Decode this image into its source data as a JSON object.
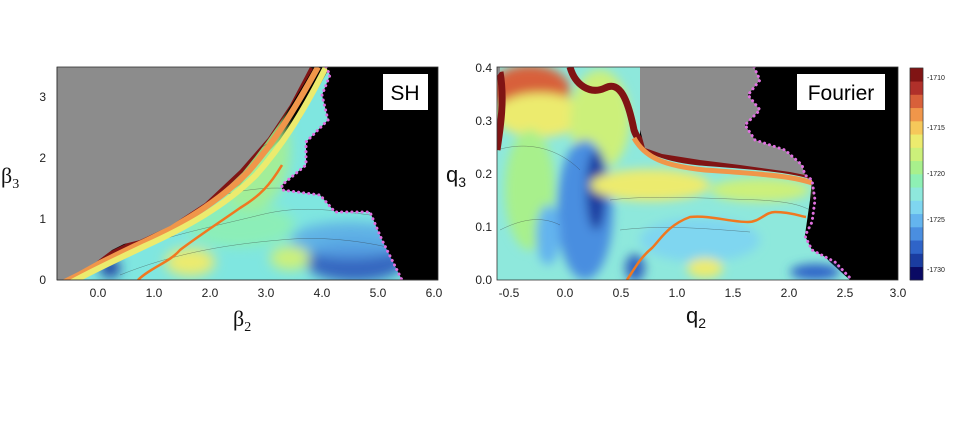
{
  "chart_data": [
    {
      "type": "heatmap",
      "panel_label": "SH",
      "xlabel_symbol": "β",
      "xlabel_sub": "2",
      "ylabel_symbol": "β",
      "ylabel_sub": "3",
      "xlim": [
        -1.0,
        6.0
      ],
      "ylim": [
        0,
        3.5
      ],
      "x_ticks": [
        "0.0",
        "1.0",
        "2.0",
        "3.0",
        "4.0",
        "5.0",
        "6.0"
      ],
      "x_tick_values": [
        0,
        1,
        2,
        3,
        4,
        5,
        6
      ],
      "y_ticks": [
        "0",
        "1",
        "2",
        "3"
      ],
      "y_tick_values": [
        0,
        1,
        2,
        3
      ],
      "region_colors": {
        "unbound": "#8c8c8c",
        "out_of_range": "#000000",
        "boundary_dots": "#e070e0",
        "fission_path": "#f07820"
      },
      "unbound_boundary": [
        [
          -0.65,
          0.0
        ],
        [
          0.0,
          0.3
        ],
        [
          0.5,
          0.65
        ],
        [
          1.0,
          0.75
        ],
        [
          1.5,
          1.05
        ],
        [
          2.0,
          1.45
        ],
        [
          2.5,
          2.0
        ],
        [
          3.0,
          2.7
        ],
        [
          3.5,
          3.5
        ]
      ],
      "data_boundary": [
        [
          3.75,
          3.5
        ],
        [
          3.8,
          3.3
        ],
        [
          3.6,
          2.9
        ],
        [
          3.65,
          2.6
        ],
        [
          3.35,
          2.35
        ],
        [
          3.5,
          1.9
        ],
        [
          3.25,
          1.7
        ],
        [
          3.2,
          1.45
        ],
        [
          3.9,
          1.4
        ],
        [
          4.3,
          1.1
        ],
        [
          5.0,
          1.1
        ],
        [
          5.2,
          0.6
        ],
        [
          5.35,
          0.0
        ]
      ],
      "fission_path": [
        [
          0.75,
          0.0
        ],
        [
          1.2,
          0.25
        ],
        [
          1.6,
          0.45
        ],
        [
          2.1,
          0.75
        ],
        [
          2.6,
          1.05
        ],
        [
          3.0,
          1.45
        ],
        [
          3.3,
          1.9
        ]
      ],
      "energy_minima": [
        [
          0.2,
          0.05
        ],
        [
          4.5,
          0.1
        ]
      ]
    },
    {
      "type": "heatmap",
      "panel_label": "Fourier",
      "xlabel_symbol": "q",
      "xlabel_sub": "2",
      "ylabel_symbol": "q",
      "ylabel_sub": "3",
      "xlim": [
        -0.6,
        3.0
      ],
      "ylim": [
        0.0,
        0.4
      ],
      "x_ticks": [
        "-0.5",
        "0.0",
        "0.5",
        "1.0",
        "1.5",
        "2.0",
        "2.5",
        "3.0"
      ],
      "x_tick_values": [
        -0.5,
        0.0,
        0.5,
        1.0,
        1.5,
        2.0,
        2.5,
        3.0
      ],
      "y_ticks": [
        "0.0",
        "0.1",
        "0.2",
        "0.3",
        "0.4"
      ],
      "y_tick_values": [
        0.0,
        0.1,
        0.2,
        0.3,
        0.4
      ],
      "region_colors": {
        "unbound": "#8c8c8c",
        "out_of_range": "#000000",
        "boundary_dots": "#e070e0",
        "fission_path": "#f07820"
      },
      "unbound_region": [
        [
          0.95,
          0.4
        ],
        [
          1.05,
          0.25
        ],
        [
          1.2,
          0.22
        ],
        [
          1.5,
          0.21
        ],
        [
          2.0,
          0.19
        ],
        [
          2.3,
          0.18
        ],
        [
          2.25,
          0.23
        ],
        [
          2.0,
          0.27
        ],
        [
          1.8,
          0.32
        ],
        [
          1.8,
          0.36
        ],
        [
          1.65,
          0.4
        ]
      ],
      "data_boundary": [
        [
          1.65,
          0.4
        ],
        [
          1.8,
          0.36
        ],
        [
          1.8,
          0.32
        ],
        [
          2.0,
          0.27
        ],
        [
          2.25,
          0.23
        ],
        [
          2.3,
          0.18
        ],
        [
          2.32,
          0.14
        ],
        [
          2.2,
          0.12
        ],
        [
          2.2,
          0.06
        ],
        [
          2.4,
          0.03
        ],
        [
          2.65,
          0.0
        ]
      ],
      "fission_path": [
        [
          0.65,
          0.0
        ],
        [
          0.8,
          0.05
        ],
        [
          1.0,
          0.1
        ],
        [
          1.2,
          0.12
        ],
        [
          1.5,
          0.115
        ],
        [
          1.75,
          0.11
        ],
        [
          1.85,
          0.125
        ],
        [
          2.2,
          0.12
        ]
      ],
      "energy_minima": [
        [
          0.3,
          0.2
        ],
        [
          0.0,
          0.05
        ],
        [
          2.3,
          0.01
        ]
      ]
    }
  ],
  "colorbar": {
    "ticks": [
      "-1710",
      "-1715",
      "-1720",
      "-1725",
      "-1730"
    ],
    "tick_values": [
      -1710,
      -1715,
      -1720,
      -1725,
      -1730
    ],
    "range": [
      -1731,
      -1708
    ],
    "colors": [
      "#0a0a64",
      "#1a3ca0",
      "#2f64c8",
      "#4a8ee0",
      "#64b4ee",
      "#7fd6f0",
      "#8ee8dc",
      "#8ef0b4",
      "#a8f08c",
      "#ccf07a",
      "#eceb6e",
      "#f6c85a",
      "#f0964a",
      "#d8603a",
      "#b0302a",
      "#801414"
    ]
  }
}
